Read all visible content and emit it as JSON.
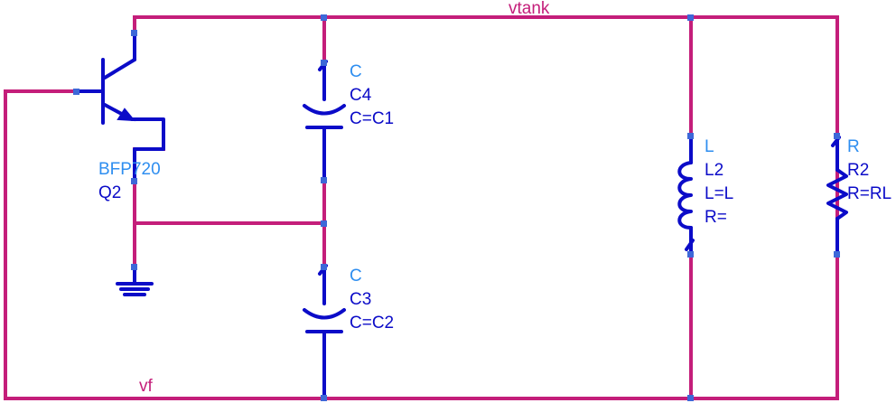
{
  "colors": {
    "wire": "#c41e7a",
    "component": "#0b0bc8",
    "type_label": "#2e8ef0",
    "pin": "#3d68d8",
    "background": "#ffffff"
  },
  "nets": {
    "top": "vtank",
    "bottom": "vf"
  },
  "components": {
    "transistor": {
      "type": "BFP720",
      "instance": "Q2",
      "icon": "npn-transistor-icon"
    },
    "cap_top": {
      "type": "C",
      "instance": "C4",
      "param": "C=C1",
      "icon": "capacitor-icon"
    },
    "cap_bottom": {
      "type": "C",
      "instance": "C3",
      "param": "C=C2",
      "icon": "capacitor-icon"
    },
    "inductor": {
      "type": "L",
      "instance": "L2",
      "param1": "L=L",
      "param2": "R=",
      "icon": "inductor-icon"
    },
    "resistor": {
      "type": "R",
      "instance": "R2",
      "param": "R=RL",
      "icon": "resistor-icon"
    },
    "ground": {
      "icon": "ground-icon"
    }
  }
}
